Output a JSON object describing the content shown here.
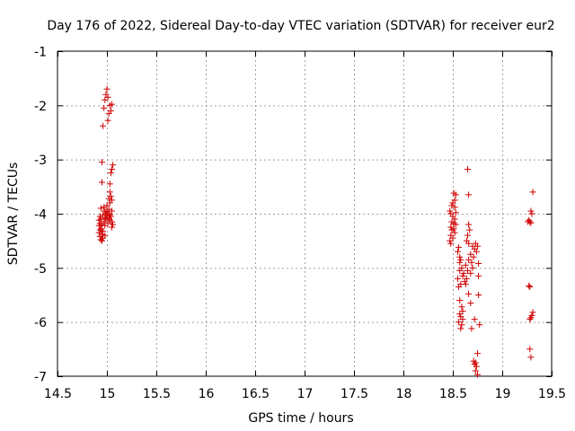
{
  "chart_data": {
    "type": "scatter",
    "title": "Day 176 of 2022, Sidereal Day-to-day VTEC variation (SDTVAR) for receiver eur2",
    "xlabel": "GPS time / hours",
    "ylabel": "SDTVAR / TECUs",
    "xlim": [
      14.5,
      19.5
    ],
    "ylim": [
      -7,
      -1
    ],
    "x_ticks": [
      14.5,
      15,
      15.5,
      16,
      16.5,
      17,
      17.5,
      18,
      18.5,
      19,
      19.5
    ],
    "x_tick_labels": [
      "14.5",
      "15",
      "15.5",
      "16",
      "16.5",
      "17",
      "17.5",
      "18",
      "18.5",
      "19",
      "19.5"
    ],
    "y_ticks": [
      -1,
      -2,
      -3,
      -4,
      -5,
      -6,
      -7
    ],
    "y_tick_labels": [
      "-1",
      "-2",
      "-3",
      "-4",
      "-5",
      "-6",
      "-7"
    ],
    "grid": true,
    "marker": "+",
    "color": "#d00000",
    "series": [
      {
        "name": "eur2",
        "points": [
          [
            15.0,
            -1.7
          ],
          [
            14.99,
            -1.8
          ],
          [
            15.01,
            -1.85
          ],
          [
            14.98,
            -1.9
          ],
          [
            15.03,
            -2.0
          ],
          [
            15.05,
            -1.98
          ],
          [
            14.97,
            -2.05
          ],
          [
            15.04,
            -2.1
          ],
          [
            15.02,
            -2.15
          ],
          [
            15.01,
            -2.28
          ],
          [
            14.96,
            -2.38
          ],
          [
            14.95,
            -3.05
          ],
          [
            15.06,
            -3.1
          ],
          [
            15.05,
            -3.18
          ],
          [
            15.04,
            -3.25
          ],
          [
            14.95,
            -3.42
          ],
          [
            15.03,
            -3.45
          ],
          [
            15.03,
            -3.6
          ],
          [
            15.04,
            -3.68
          ],
          [
            15.02,
            -3.72
          ],
          [
            15.05,
            -3.75
          ],
          [
            15.03,
            -3.8
          ],
          [
            15.0,
            -3.85
          ],
          [
            14.97,
            -3.88
          ],
          [
            14.94,
            -3.9
          ],
          [
            15.02,
            -3.92
          ],
          [
            14.98,
            -3.95
          ],
          [
            15.05,
            -3.95
          ],
          [
            15.0,
            -3.97
          ],
          [
            14.99,
            -4.0
          ],
          [
            15.01,
            -4.0
          ],
          [
            14.96,
            -4.02
          ],
          [
            15.03,
            -4.02
          ],
          [
            14.93,
            -4.05
          ],
          [
            15.0,
            -4.05
          ],
          [
            15.04,
            -4.05
          ],
          [
            14.98,
            -4.08
          ],
          [
            15.02,
            -4.08
          ],
          [
            14.94,
            -4.1
          ],
          [
            14.99,
            -4.1
          ],
          [
            14.92,
            -4.12
          ],
          [
            15.03,
            -4.12
          ],
          [
            14.97,
            -4.15
          ],
          [
            15.05,
            -4.15
          ],
          [
            14.93,
            -4.18
          ],
          [
            15.01,
            -4.18
          ],
          [
            14.95,
            -4.2
          ],
          [
            15.06,
            -4.2
          ],
          [
            14.92,
            -4.22
          ],
          [
            14.98,
            -4.22
          ],
          [
            15.05,
            -4.25
          ],
          [
            14.94,
            -4.28
          ],
          [
            14.93,
            -4.3
          ],
          [
            14.96,
            -4.32
          ],
          [
            14.92,
            -4.35
          ],
          [
            14.95,
            -4.38
          ],
          [
            14.98,
            -4.4
          ],
          [
            14.93,
            -4.42
          ],
          [
            14.96,
            -4.45
          ],
          [
            14.94,
            -4.48
          ],
          [
            14.95,
            -4.5
          ],
          [
            18.51,
            -3.62
          ],
          [
            18.53,
            -3.65
          ],
          [
            18.52,
            -3.75
          ],
          [
            18.5,
            -3.8
          ],
          [
            18.49,
            -3.85
          ],
          [
            18.52,
            -3.88
          ],
          [
            18.47,
            -3.95
          ],
          [
            18.53,
            -3.98
          ],
          [
            18.48,
            -4.0
          ],
          [
            18.5,
            -4.05
          ],
          [
            18.52,
            -4.1
          ],
          [
            18.49,
            -4.15
          ],
          [
            18.51,
            -4.18
          ],
          [
            18.53,
            -4.2
          ],
          [
            18.48,
            -4.25
          ],
          [
            18.51,
            -4.28
          ],
          [
            18.49,
            -4.3
          ],
          [
            18.52,
            -4.35
          ],
          [
            18.48,
            -4.4
          ],
          [
            18.5,
            -4.45
          ],
          [
            18.47,
            -4.5
          ],
          [
            18.48,
            -4.55
          ],
          [
            18.56,
            -4.62
          ],
          [
            18.55,
            -4.7
          ],
          [
            18.57,
            -4.8
          ],
          [
            18.58,
            -4.85
          ],
          [
            18.57,
            -4.9
          ],
          [
            18.59,
            -5.0
          ],
          [
            18.57,
            -5.05
          ],
          [
            18.61,
            -5.1
          ],
          [
            18.6,
            -5.15
          ],
          [
            18.55,
            -5.2
          ],
          [
            18.62,
            -5.25
          ],
          [
            18.58,
            -5.3
          ],
          [
            18.56,
            -5.35
          ],
          [
            18.63,
            -5.3
          ],
          [
            18.57,
            -5.6
          ],
          [
            18.59,
            -5.72
          ],
          [
            18.6,
            -5.8
          ],
          [
            18.57,
            -5.85
          ],
          [
            18.58,
            -5.9
          ],
          [
            18.6,
            -5.95
          ],
          [
            18.56,
            -6.0
          ],
          [
            18.59,
            -6.05
          ],
          [
            18.58,
            -6.12
          ],
          [
            18.65,
            -3.18
          ],
          [
            18.66,
            -3.65
          ],
          [
            18.66,
            -4.2
          ],
          [
            18.67,
            -4.3
          ],
          [
            18.65,
            -4.4
          ],
          [
            18.64,
            -4.5
          ],
          [
            18.66,
            -4.55
          ],
          [
            18.7,
            -4.6
          ],
          [
            18.73,
            -4.55
          ],
          [
            18.75,
            -4.6
          ],
          [
            18.72,
            -4.65
          ],
          [
            18.74,
            -4.7
          ],
          [
            18.68,
            -4.75
          ],
          [
            18.71,
            -4.8
          ],
          [
            18.66,
            -4.85
          ],
          [
            18.69,
            -4.9
          ],
          [
            18.63,
            -4.95
          ],
          [
            18.76,
            -4.92
          ],
          [
            18.7,
            -5.0
          ],
          [
            18.65,
            -5.05
          ],
          [
            18.68,
            -5.1
          ],
          [
            18.64,
            -5.2
          ],
          [
            18.76,
            -5.15
          ],
          [
            18.66,
            -5.48
          ],
          [
            18.76,
            -5.5
          ],
          [
            18.68,
            -5.65
          ],
          [
            18.72,
            -5.95
          ],
          [
            18.77,
            -6.05
          ],
          [
            18.69,
            -6.12
          ],
          [
            18.75,
            -6.58
          ],
          [
            18.71,
            -6.72
          ],
          [
            18.73,
            -6.75
          ],
          [
            18.72,
            -6.78
          ],
          [
            18.74,
            -6.82
          ],
          [
            18.73,
            -6.9
          ],
          [
            18.75,
            -6.97
          ],
          [
            19.31,
            -3.6
          ],
          [
            19.29,
            -3.95
          ],
          [
            19.3,
            -4.0
          ],
          [
            19.27,
            -4.12
          ],
          [
            19.28,
            -4.15
          ],
          [
            19.26,
            -4.15
          ],
          [
            19.29,
            -4.17
          ],
          [
            19.27,
            -5.33
          ],
          [
            19.28,
            -5.35
          ],
          [
            19.31,
            -5.82
          ],
          [
            19.3,
            -5.88
          ],
          [
            19.29,
            -5.92
          ],
          [
            19.28,
            -5.95
          ],
          [
            19.28,
            -6.5
          ],
          [
            19.29,
            -6.65
          ]
        ]
      }
    ]
  }
}
